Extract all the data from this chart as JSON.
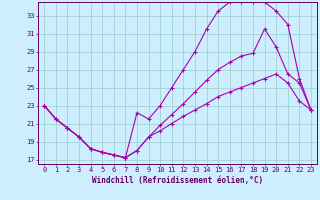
{
  "xlabel": "Windchill (Refroidissement éolien,°C)",
  "bg_color": "#cceeff",
  "line_color": "#aa00aa",
  "grid_color": "#99cccc",
  "axis_color": "#660066",
  "xlim": [
    -0.5,
    23.5
  ],
  "ylim": [
    16.5,
    34.5
  ],
  "yticks": [
    17,
    19,
    21,
    23,
    25,
    27,
    29,
    31,
    33
  ],
  "xticks": [
    0,
    1,
    2,
    3,
    4,
    5,
    6,
    7,
    8,
    9,
    10,
    11,
    12,
    13,
    14,
    15,
    16,
    17,
    18,
    19,
    20,
    21,
    22,
    23
  ],
  "curve1_x": [
    0,
    1,
    2,
    3,
    4,
    5,
    6,
    7,
    8,
    9,
    10,
    11,
    12,
    13,
    14,
    15,
    16,
    17,
    18,
    19,
    20,
    21,
    22,
    23
  ],
  "curve1_y": [
    23,
    21.5,
    20.5,
    19.5,
    18.2,
    17.8,
    17.5,
    17.2,
    22.2,
    21.5,
    23.0,
    25.0,
    27.0,
    29.0,
    31.5,
    33.5,
    34.5,
    34.5,
    34.5,
    34.5,
    33.5,
    32.0,
    26.0,
    22.5
  ],
  "curve2_x": [
    0,
    1,
    2,
    3,
    4,
    5,
    6,
    7,
    8,
    9,
    10,
    11,
    12,
    13,
    14,
    15,
    16,
    17,
    18,
    19,
    20,
    21,
    22,
    23
  ],
  "curve2_y": [
    23,
    21.5,
    20.5,
    19.5,
    18.2,
    17.8,
    17.5,
    17.2,
    18.0,
    19.5,
    20.8,
    22.0,
    23.2,
    24.5,
    25.8,
    27.0,
    27.8,
    28.5,
    28.8,
    31.5,
    29.5,
    26.5,
    25.5,
    22.5
  ],
  "curve3_x": [
    0,
    1,
    2,
    3,
    4,
    5,
    6,
    7,
    8,
    9,
    10,
    11,
    12,
    13,
    14,
    15,
    16,
    17,
    18,
    19,
    20,
    21,
    22,
    23
  ],
  "curve3_y": [
    23,
    21.5,
    20.5,
    19.5,
    18.2,
    17.8,
    17.5,
    17.2,
    18.0,
    19.5,
    20.2,
    21.0,
    21.8,
    22.5,
    23.2,
    24.0,
    24.5,
    25.0,
    25.5,
    26.0,
    26.5,
    25.5,
    23.5,
    22.5
  ],
  "marker": "+",
  "marker_size": 3,
  "line_width": 0.8,
  "label_fontsize": 5.5,
  "tick_fontsize": 5.0
}
